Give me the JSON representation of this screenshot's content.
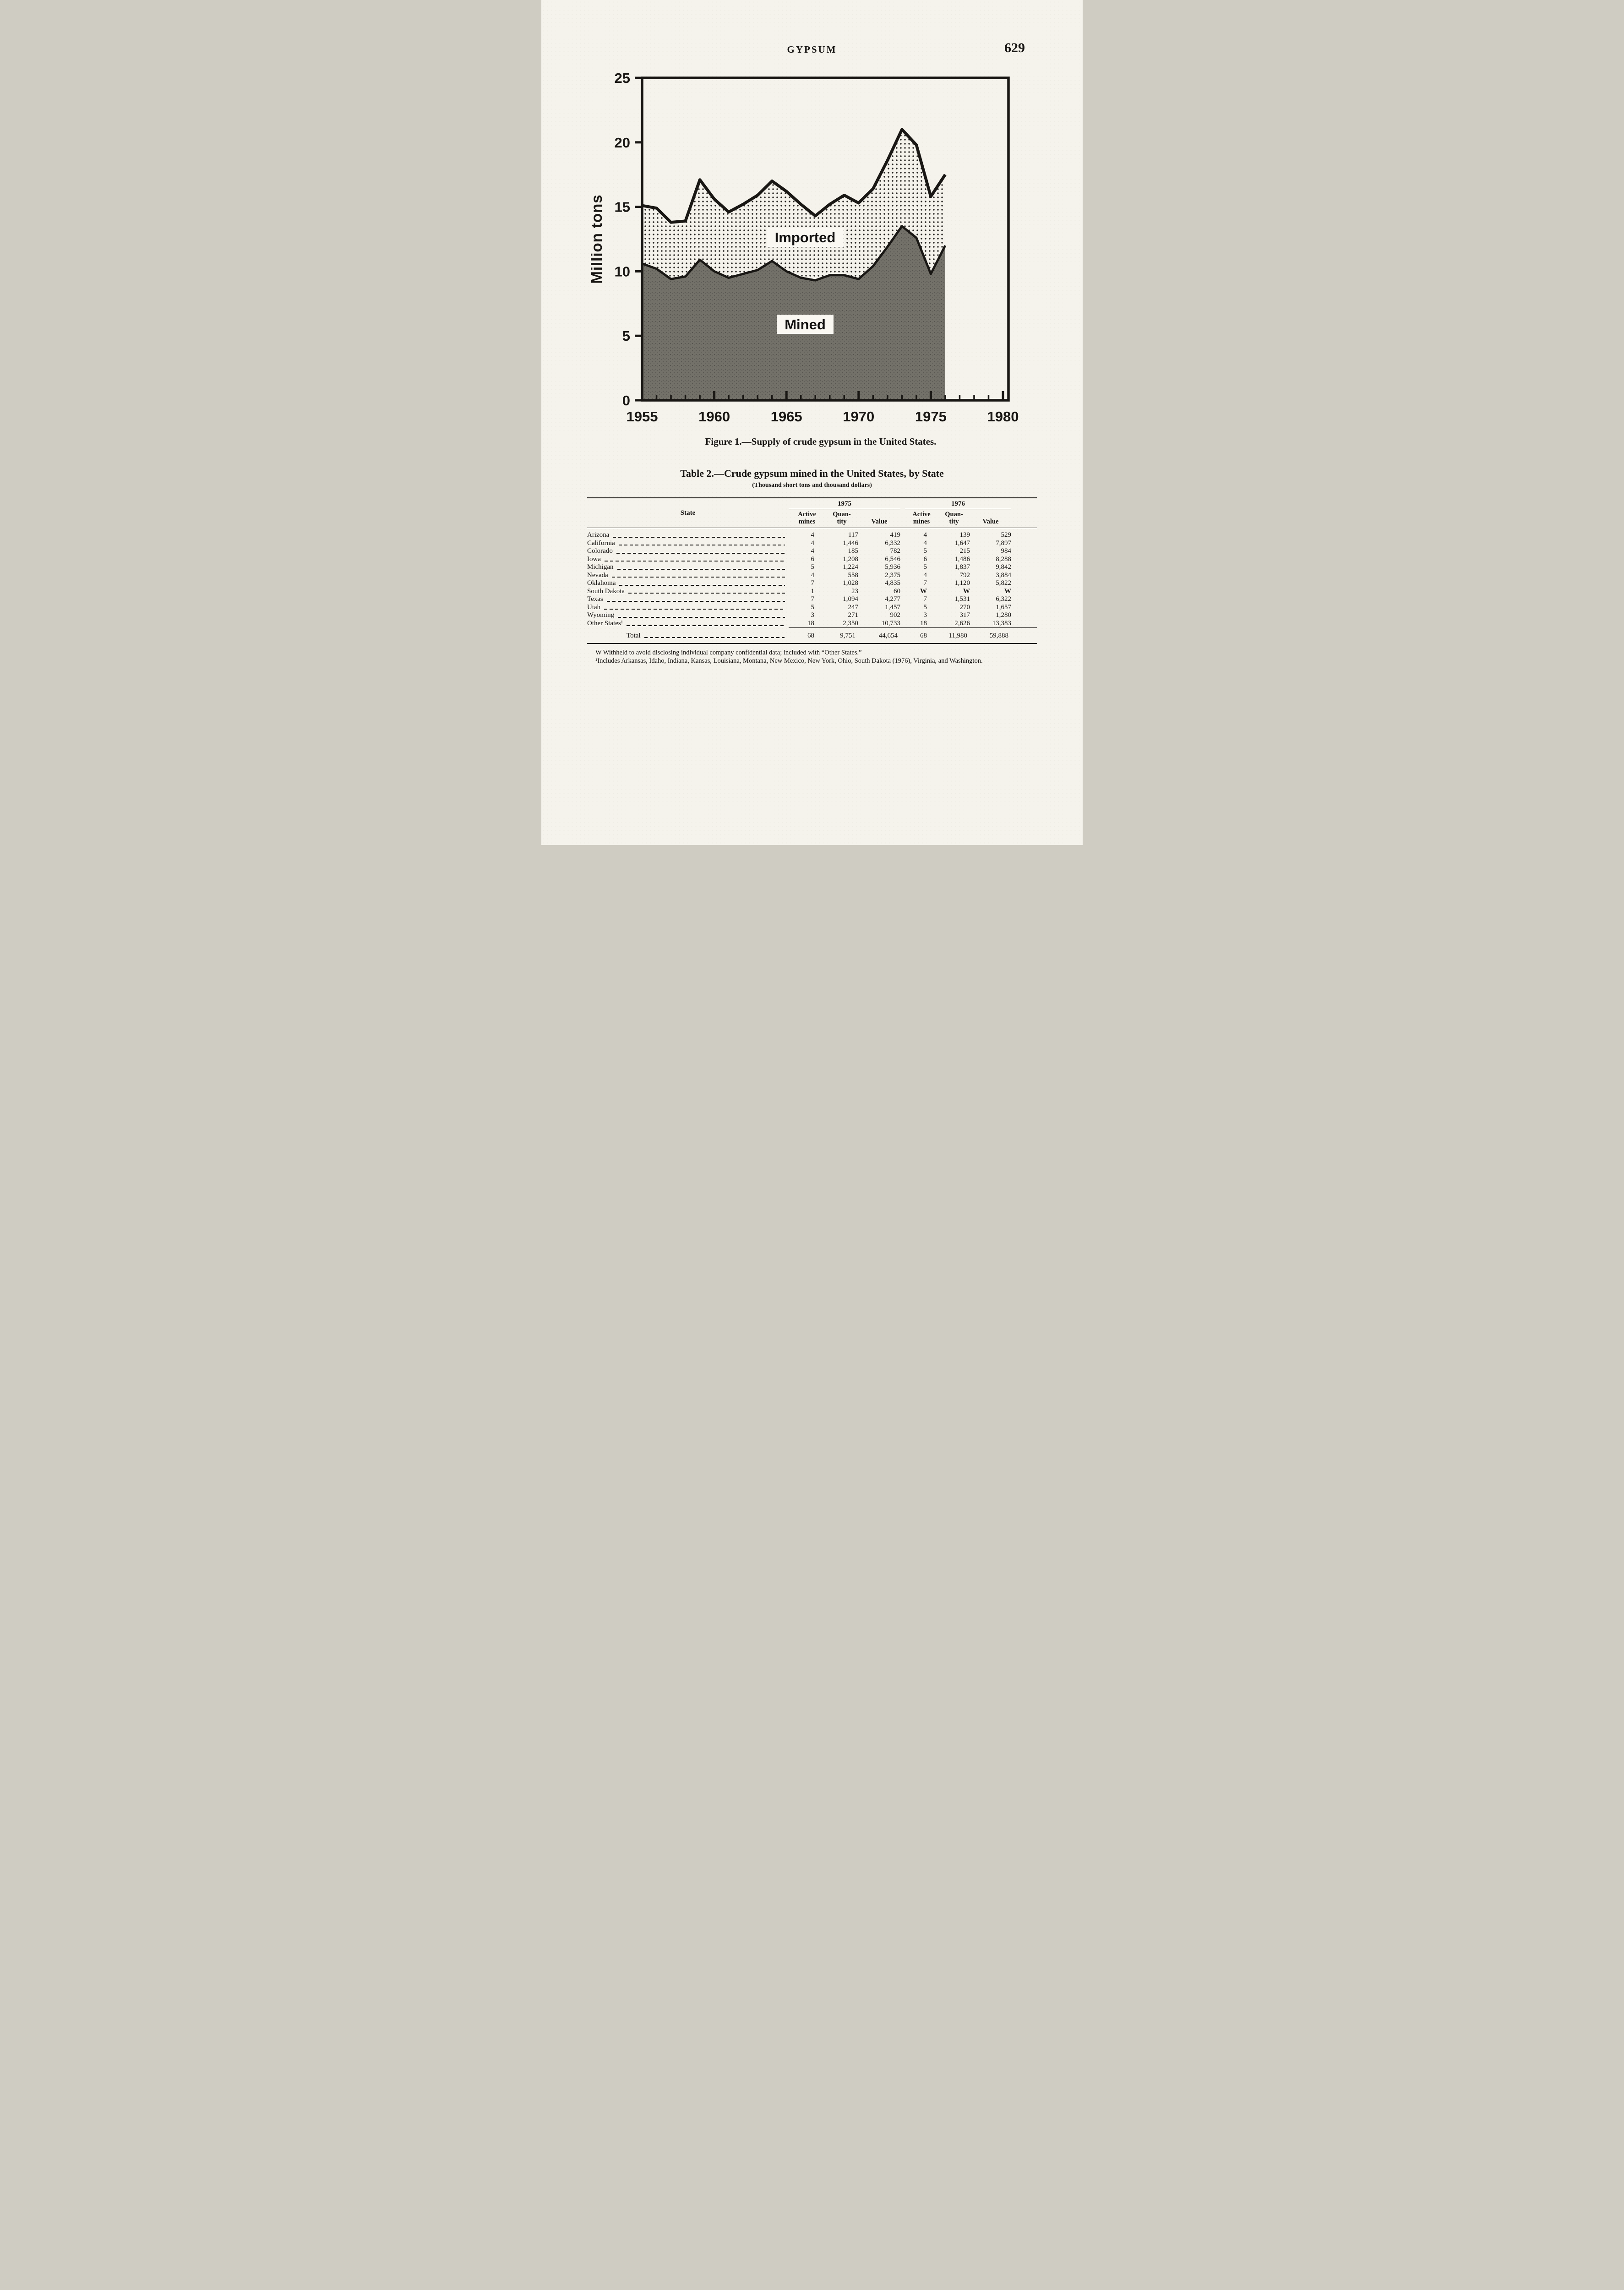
{
  "page": {
    "header_title": "GYPSUM",
    "page_number": "629"
  },
  "figure": {
    "caption": "Figure 1.—Supply of crude gypsum in the United States.",
    "area_labels": {
      "imported": "Imported",
      "mined": "Mined"
    }
  },
  "chart_data": {
    "type": "area",
    "stacked": true,
    "title": "Figure 1.—Supply of crude gypsum in the United States.",
    "ylabel": "Million tons",
    "xlabel": "",
    "xlim": [
      1955,
      1980
    ],
    "ylim": [
      0,
      25
    ],
    "xticks": [
      1955,
      1960,
      1965,
      1970,
      1975,
      1980
    ],
    "yticks": [
      0,
      5,
      10,
      15,
      20,
      25
    ],
    "x": [
      1955,
      1956,
      1957,
      1958,
      1959,
      1960,
      1961,
      1962,
      1963,
      1964,
      1965,
      1966,
      1967,
      1968,
      1969,
      1970,
      1971,
      1972,
      1973,
      1974,
      1975,
      1976
    ],
    "series": [
      {
        "name": "Mined",
        "fill": "speckled-gray",
        "values": [
          10.6,
          10.2,
          9.4,
          9.6,
          10.9,
          10.0,
          9.5,
          9.8,
          10.1,
          10.8,
          10.0,
          9.5,
          9.3,
          9.7,
          9.7,
          9.4,
          10.4,
          11.9,
          13.5,
          12.6,
          9.8,
          12.0
        ]
      },
      {
        "name": "Imported",
        "fill": "dotted",
        "values": [
          4.5,
          4.7,
          4.4,
          4.3,
          6.2,
          5.6,
          5.1,
          5.4,
          5.8,
          6.2,
          6.2,
          5.7,
          5.0,
          5.5,
          6.2,
          5.9,
          6.0,
          6.7,
          7.5,
          7.2,
          6.0,
          5.5
        ]
      }
    ],
    "total_supply": [
      15.1,
      14.9,
      13.8,
      13.9,
      17.1,
      15.6,
      14.6,
      15.2,
      15.9,
      17.0,
      16.2,
      15.2,
      14.3,
      15.2,
      15.9,
      15.3,
      16.4,
      18.6,
      21.0,
      19.8,
      15.8,
      17.5
    ],
    "note": "Imported is stacked on top of Mined; the upper heavy line is total supply (million tons)."
  },
  "table": {
    "title": "Table 2.—Crude gypsum mined in the United States, by State",
    "subtitle": "(Thousand short tons and thousand dollars)",
    "col_state": "State",
    "year_groups": [
      "1975",
      "1976"
    ],
    "sub_headers": [
      "Active\nmines",
      "Quan-\ntity",
      "Value"
    ],
    "rows": [
      {
        "state": "Arizona",
        "values": [
          "4",
          "117",
          "419",
          "4",
          "139",
          "529"
        ]
      },
      {
        "state": "California",
        "values": [
          "4",
          "1,446",
          "6,332",
          "4",
          "1,647",
          "7,897"
        ]
      },
      {
        "state": "Colorado",
        "values": [
          "4",
          "185",
          "782",
          "5",
          "215",
          "984"
        ]
      },
      {
        "state": "Iowa",
        "values": [
          "6",
          "1,208",
          "6,546",
          "6",
          "1,486",
          "8,288"
        ]
      },
      {
        "state": "Michigan",
        "values": [
          "5",
          "1,224",
          "5,936",
          "5",
          "1,837",
          "9,842"
        ]
      },
      {
        "state": "Nevada",
        "values": [
          "4",
          "558",
          "2,375",
          "4",
          "792",
          "3,884"
        ]
      },
      {
        "state": "Oklahoma",
        "values": [
          "7",
          "1,028",
          "4,835",
          "7",
          "1,120",
          "5,822"
        ]
      },
      {
        "state": "South Dakota",
        "values": [
          "1",
          "23",
          "60",
          "W",
          "W",
          "W"
        ]
      },
      {
        "state": "Texas",
        "values": [
          "7",
          "1,094",
          "4,277",
          "7",
          "1,531",
          "6,322"
        ]
      },
      {
        "state": "Utah",
        "values": [
          "5",
          "247",
          "1,457",
          "5",
          "270",
          "1,657"
        ]
      },
      {
        "state": "Wyoming",
        "values": [
          "3",
          "271",
          "902",
          "3",
          "317",
          "1,280"
        ]
      },
      {
        "state": "Other States¹",
        "values": [
          "18",
          "2,350",
          "10,733",
          "18",
          "2,626",
          "13,383"
        ]
      }
    ],
    "total_label": "Total",
    "total_values": [
      "68",
      "9,751",
      "44,654",
      "68",
      "11,980",
      "59,888"
    ],
    "footnotes": [
      "W Withheld to avoid disclosing individual company confidential data; included with “Other States.”",
      "¹Includes Arkansas, Idaho, Indiana, Kansas, Louisiana, Montana, New Mexico, New York, Ohio, South Dakota (1976), Virginia, and Washington."
    ]
  }
}
